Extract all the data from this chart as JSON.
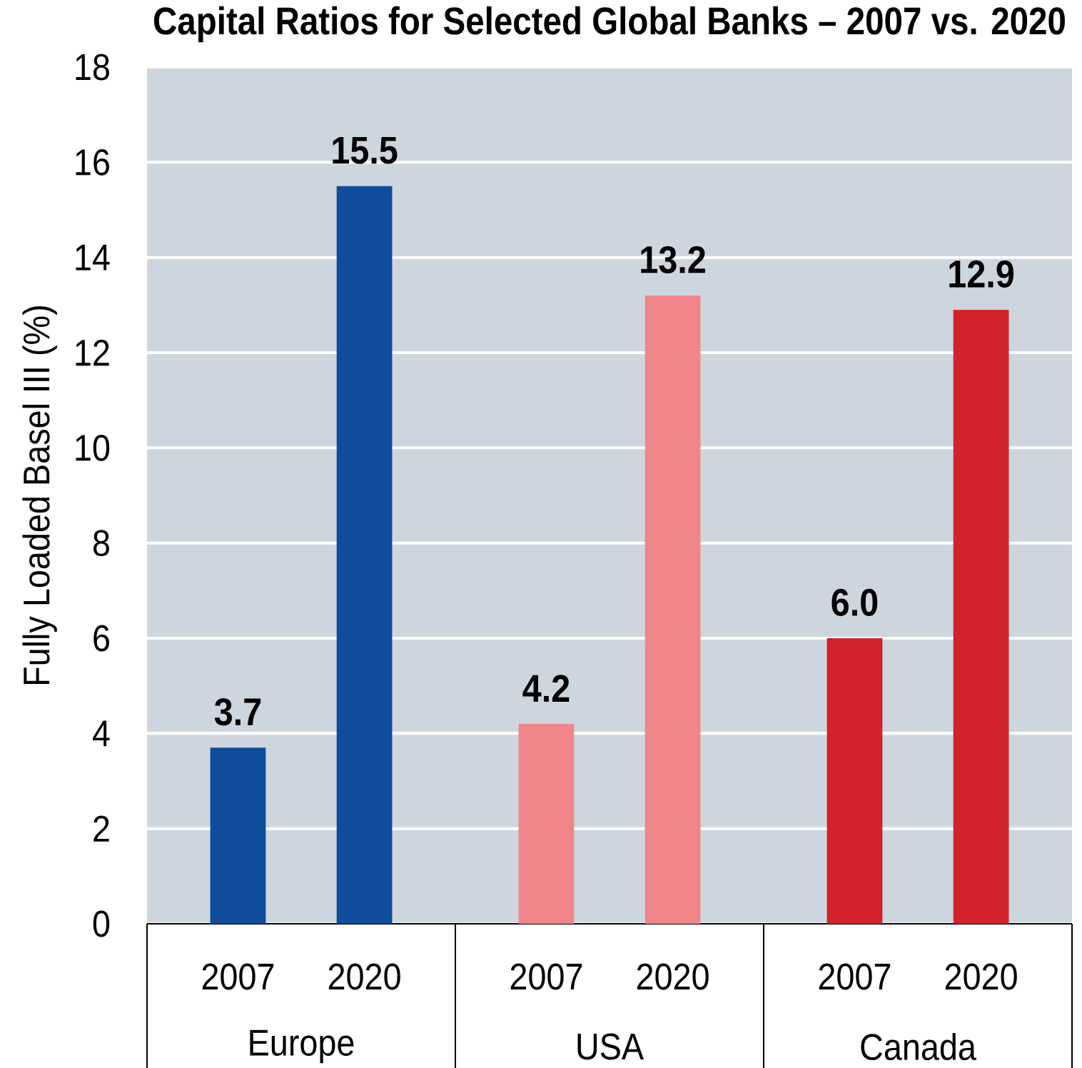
{
  "chart_data": {
    "type": "bar",
    "title": "Capital Ratios for Selected Global Banks – 2007 vs. 2020",
    "ylabel": "Fully Loaded Basel III (%)",
    "categories": [
      "Europe",
      "USA",
      "Canada"
    ],
    "series": [
      {
        "name": "2007",
        "values": [
          3.7,
          4.2,
          6.0
        ],
        "value_labels": [
          "3.7",
          "4.2",
          "6.0"
        ],
        "colors": [
          "#0f4c9c",
          "#f0868a",
          "#d2232a"
        ]
      },
      {
        "name": "2020",
        "values": [
          15.5,
          13.2,
          12.9
        ],
        "value_labels": [
          "15.5",
          "13.2",
          "12.9"
        ],
        "colors": [
          "#0f4c9c",
          "#f0868a",
          "#d2232a"
        ]
      }
    ],
    "ylim": [
      0,
      18
    ],
    "yticks": [
      0,
      2,
      4,
      6,
      8,
      10,
      12,
      14,
      16,
      18
    ],
    "grid": "y"
  }
}
